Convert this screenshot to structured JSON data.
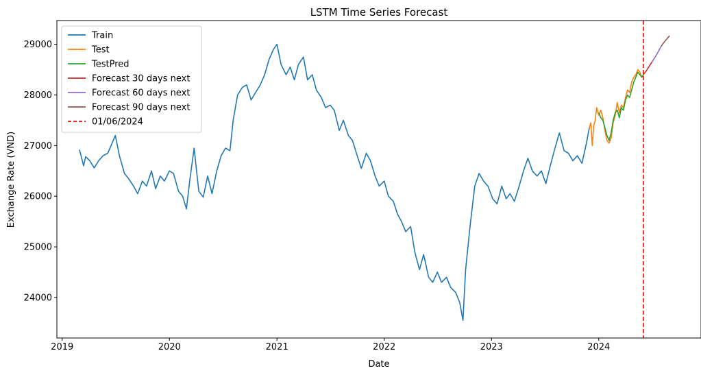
{
  "chart_data": {
    "type": "line",
    "title": "LSTM Time Series Forecast",
    "xlabel": "Date",
    "ylabel": "Exchange Rate (VND)",
    "xlim": [
      "2018-12-14",
      "2024-12-14"
    ],
    "ylim": [
      23200,
      29470
    ],
    "x_ticks": [
      "2019",
      "2020",
      "2021",
      "2022",
      "2023",
      "2024"
    ],
    "y_ticks": [
      24000,
      25000,
      26000,
      27000,
      28000,
      29000
    ],
    "grid": false,
    "legend_position": "top-left",
    "series": [
      {
        "name": "Train",
        "color": "#1f77b4",
        "x": [
          "2019-03-01",
          "2019-03-15",
          "2019-03-22",
          "2019-04-05",
          "2019-04-20",
          "2019-05-05",
          "2019-05-20",
          "2019-06-05",
          "2019-06-20",
          "2019-07-01",
          "2019-07-15",
          "2019-08-01",
          "2019-08-15",
          "2019-09-01",
          "2019-09-15",
          "2019-10-01",
          "2019-10-15",
          "2019-11-01",
          "2019-11-15",
          "2019-12-01",
          "2019-12-15",
          "2020-01-01",
          "2020-01-15",
          "2020-02-01",
          "2020-02-15",
          "2020-02-28",
          "2020-03-10",
          "2020-03-25",
          "2020-04-10",
          "2020-04-25",
          "2020-05-10",
          "2020-05-25",
          "2020-06-10",
          "2020-06-25",
          "2020-07-10",
          "2020-07-25",
          "2020-08-05",
          "2020-08-20",
          "2020-09-05",
          "2020-09-20",
          "2020-10-05",
          "2020-10-20",
          "2020-11-05",
          "2020-11-20",
          "2020-12-05",
          "2020-12-20",
          "2021-01-01",
          "2021-01-15",
          "2021-02-01",
          "2021-02-15",
          "2021-03-01",
          "2021-03-15",
          "2021-04-01",
          "2021-04-15",
          "2021-05-01",
          "2021-05-15",
          "2021-06-01",
          "2021-06-15",
          "2021-07-01",
          "2021-07-15",
          "2021-08-01",
          "2021-08-15",
          "2021-09-01",
          "2021-09-15",
          "2021-10-01",
          "2021-10-15",
          "2021-11-01",
          "2021-11-15",
          "2021-12-01",
          "2021-12-15",
          "2022-01-01",
          "2022-01-15",
          "2022-02-01",
          "2022-02-15",
          "2022-03-01",
          "2022-03-15",
          "2022-04-01",
          "2022-04-15",
          "2022-05-01",
          "2022-05-15",
          "2022-06-01",
          "2022-06-15",
          "2022-07-01",
          "2022-07-15",
          "2022-08-01",
          "2022-08-15",
          "2022-09-01",
          "2022-09-15",
          "2022-09-26",
          "2022-10-05",
          "2022-10-20",
          "2022-11-05",
          "2022-11-20",
          "2022-12-05",
          "2022-12-20",
          "2023-01-05",
          "2023-01-20",
          "2023-02-05",
          "2023-02-20",
          "2023-03-05",
          "2023-03-20",
          "2023-04-05",
          "2023-04-20",
          "2023-05-05",
          "2023-05-20",
          "2023-06-05",
          "2023-06-20",
          "2023-07-05",
          "2023-07-20",
          "2023-08-05",
          "2023-08-20",
          "2023-09-05",
          "2023-09-20",
          "2023-10-05",
          "2023-10-20",
          "2023-11-05",
          "2023-11-20",
          "2023-11-30"
        ],
        "y": [
          26920,
          26600,
          26780,
          26700,
          26560,
          26700,
          26800,
          26850,
          27050,
          27200,
          26800,
          26450,
          26350,
          26200,
          26050,
          26300,
          26200,
          26500,
          26150,
          26400,
          26300,
          26500,
          26450,
          26100,
          26000,
          25750,
          26300,
          26950,
          26100,
          25980,
          26400,
          26050,
          26500,
          26800,
          26950,
          26900,
          27500,
          28000,
          28150,
          28200,
          27900,
          28050,
          28200,
          28400,
          28700,
          28900,
          29000,
          28600,
          28400,
          28550,
          28300,
          28600,
          28750,
          28300,
          28400,
          28100,
          27950,
          27750,
          27800,
          27700,
          27300,
          27500,
          27200,
          27100,
          26800,
          26550,
          26850,
          26700,
          26400,
          26200,
          26300,
          26000,
          25900,
          25650,
          25500,
          25300,
          25400,
          24900,
          24550,
          24850,
          24400,
          24300,
          24500,
          24300,
          24400,
          24200,
          24100,
          23900,
          23550,
          24550,
          25400,
          26200,
          26450,
          26300,
          26200,
          25950,
          25850,
          26200,
          25950,
          26050,
          25900,
          26200,
          26500,
          26750,
          26500,
          26400,
          26500,
          26250,
          26600,
          26950,
          27250,
          26900,
          26850,
          26700,
          26800,
          26650,
          27050,
          27350
        ]
      },
      {
        "name": "Test",
        "color": "#ff7f0e",
        "x": [
          "2023-11-30",
          "2023-12-05",
          "2023-12-10",
          "2023-12-15",
          "2023-12-20",
          "2023-12-25",
          "2024-01-01",
          "2024-01-08",
          "2024-01-15",
          "2024-01-22",
          "2024-01-29",
          "2024-02-05",
          "2024-02-12",
          "2024-02-19",
          "2024-02-26",
          "2024-03-04",
          "2024-03-11",
          "2024-03-18",
          "2024-03-25",
          "2024-04-01",
          "2024-04-08",
          "2024-04-15",
          "2024-04-22",
          "2024-04-29",
          "2024-05-06",
          "2024-05-13",
          "2024-05-20",
          "2024-05-27",
          "2024-06-01"
        ],
        "y": [
          27350,
          27450,
          27000,
          27400,
          27500,
          27750,
          27600,
          27700,
          27550,
          27300,
          27100,
          27050,
          27150,
          27450,
          27600,
          27850,
          27650,
          27800,
          27750,
          27950,
          28100,
          28050,
          28250,
          28350,
          28400,
          28500,
          28450,
          28350,
          28400
        ]
      },
      {
        "name": "TestPred",
        "color": "#2ca02c",
        "x": [
          "2024-01-01",
          "2024-01-08",
          "2024-01-15",
          "2024-01-22",
          "2024-01-29",
          "2024-02-05",
          "2024-02-12",
          "2024-02-19",
          "2024-02-26",
          "2024-03-04",
          "2024-03-11",
          "2024-03-18",
          "2024-03-25",
          "2024-04-01",
          "2024-04-08",
          "2024-04-15",
          "2024-04-22",
          "2024-04-29",
          "2024-05-06",
          "2024-05-13",
          "2024-05-20",
          "2024-05-27",
          "2024-06-01"
        ],
        "y": [
          27650,
          27550,
          27500,
          27350,
          27200,
          27100,
          27250,
          27500,
          27650,
          27700,
          27550,
          27750,
          27700,
          27900,
          28000,
          27950,
          28100,
          28250,
          28350,
          28450,
          28400,
          28350,
          28400
        ]
      },
      {
        "name": "Forecast 30 days next",
        "color": "#d62728",
        "x": [
          "2024-06-01",
          "2024-06-10",
          "2024-06-20",
          "2024-07-01"
        ],
        "y": [
          28400,
          28470,
          28560,
          28660
        ]
      },
      {
        "name": "Forecast 60 days next",
        "color": "#9467bd",
        "x": [
          "2024-07-01",
          "2024-07-10",
          "2024-07-20",
          "2024-07-31"
        ],
        "y": [
          28660,
          28740,
          28840,
          28960
        ]
      },
      {
        "name": "Forecast 90 days next",
        "color": "#8c564b",
        "x": [
          "2024-07-31",
          "2024-08-10",
          "2024-08-20",
          "2024-08-29"
        ],
        "y": [
          28960,
          29040,
          29110,
          29170
        ]
      }
    ],
    "vline": {
      "name": "01/06/2024",
      "x": "2024-06-01",
      "color": "#ff0000",
      "style": "dashed"
    }
  }
}
